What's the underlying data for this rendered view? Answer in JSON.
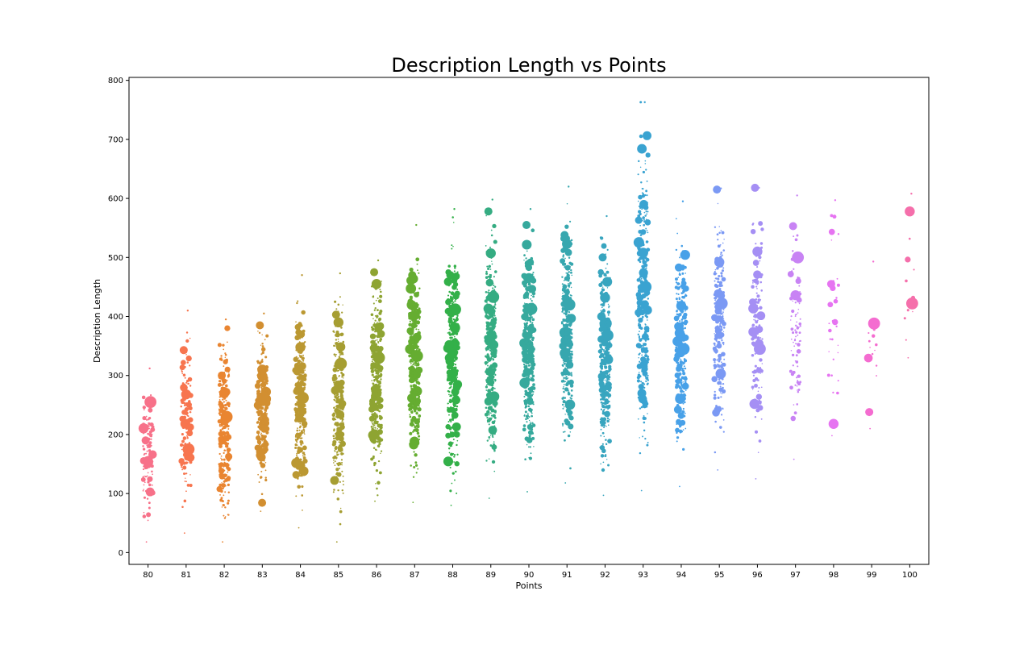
{
  "chart_data": {
    "type": "scatter",
    "title": "Description Length vs Points",
    "xlabel": "Points",
    "ylabel": "Description Length",
    "categories": [
      "80",
      "81",
      "82",
      "83",
      "84",
      "85",
      "86",
      "87",
      "88",
      "89",
      "90",
      "91",
      "92",
      "93",
      "94",
      "95",
      "96",
      "97",
      "98",
      "99",
      "100"
    ],
    "ylim": [
      -20,
      805
    ],
    "yticks": [
      0,
      100,
      200,
      300,
      400,
      500,
      600,
      700,
      800
    ],
    "grid": false,
    "legend": "none",
    "palette": [
      "#f77189",
      "#f7754f",
      "#e98531",
      "#d28f31",
      "#bb9832",
      "#a69e32",
      "#8ea432",
      "#65ad31",
      "#33b049",
      "#35ac82",
      "#36a99d",
      "#37a7af",
      "#38a5bf",
      "#3aa3d1",
      "#48a1e8",
      "#7b99f4",
      "#a58ff4",
      "#c883f4",
      "#e674f1",
      "#f46cd0",
      "#f56fab"
    ],
    "distribution": {
      "80": {
        "min": 18,
        "max": 312,
        "count": 110
      },
      "81": {
        "min": 33,
        "max": 410,
        "count": 160
      },
      "82": {
        "min": 18,
        "max": 395,
        "count": 260
      },
      "83": {
        "min": 70,
        "max": 405,
        "count": 300
      },
      "84": {
        "min": 42,
        "max": 470,
        "count": 310
      },
      "85": {
        "min": 18,
        "max": 473,
        "count": 330
      },
      "86": {
        "min": 87,
        "max": 495,
        "count": 360
      },
      "87": {
        "min": 85,
        "max": 555,
        "count": 380
      },
      "88": {
        "min": 80,
        "max": 582,
        "count": 380
      },
      "89": {
        "min": 92,
        "max": 598,
        "count": 380
      },
      "90": {
        "min": 103,
        "max": 582,
        "count": 400
      },
      "91": {
        "min": 118,
        "max": 620,
        "count": 380
      },
      "92": {
        "min": 97,
        "max": 570,
        "count": 360
      },
      "93": {
        "min": 105,
        "max": 763,
        "count": 340
      },
      "94": {
        "min": 112,
        "max": 595,
        "count": 290
      },
      "95": {
        "min": 140,
        "max": 617,
        "count": 230
      },
      "96": {
        "min": 125,
        "max": 618,
        "count": 150
      },
      "97": {
        "min": 158,
        "max": 605,
        "count": 90
      },
      "98": {
        "min": 198,
        "max": 597,
        "count": 30
      },
      "99": {
        "min": 210,
        "max": 493,
        "count": 12
      },
      "100": {
        "min": 330,
        "max": 608,
        "count": 10
      }
    },
    "highlight_points": [
      {
        "x": "80",
        "y": 190
      },
      {
        "x": "80",
        "y": 155
      },
      {
        "x": "80",
        "y": 255
      },
      {
        "x": "81",
        "y": 343
      },
      {
        "x": "81",
        "y": 268
      },
      {
        "x": "81",
        "y": 175
      },
      {
        "x": "82",
        "y": 300
      },
      {
        "x": "82",
        "y": 270
      },
      {
        "x": "82",
        "y": 230
      },
      {
        "x": "83",
        "y": 385
      },
      {
        "x": "83",
        "y": 310
      },
      {
        "x": "83",
        "y": 260
      },
      {
        "x": "84",
        "y": 310
      },
      {
        "x": "84",
        "y": 348
      },
      {
        "x": "84",
        "y": 262
      },
      {
        "x": "85",
        "y": 403
      },
      {
        "x": "85",
        "y": 390
      },
      {
        "x": "85",
        "y": 320
      },
      {
        "x": "86",
        "y": 475
      },
      {
        "x": "86",
        "y": 455
      },
      {
        "x": "86",
        "y": 330
      },
      {
        "x": "87",
        "y": 470
      },
      {
        "x": "87",
        "y": 402
      },
      {
        "x": "87",
        "y": 333
      },
      {
        "x": "88",
        "y": 470
      },
      {
        "x": "88",
        "y": 338
      },
      {
        "x": "88",
        "y": 412
      },
      {
        "x": "89",
        "y": 578
      },
      {
        "x": "89",
        "y": 507
      },
      {
        "x": "89",
        "y": 433
      },
      {
        "x": "90",
        "y": 555
      },
      {
        "x": "90",
        "y": 465
      },
      {
        "x": "90",
        "y": 413
      },
      {
        "x": "91",
        "y": 538
      },
      {
        "x": "91",
        "y": 523
      },
      {
        "x": "91",
        "y": 420
      },
      {
        "x": "92",
        "y": 500
      },
      {
        "x": "92",
        "y": 432
      },
      {
        "x": "92",
        "y": 368
      },
      {
        "x": "93",
        "y": 763
      },
      {
        "x": "93",
        "y": 508
      },
      {
        "x": "93",
        "y": 450
      },
      {
        "x": "94",
        "y": 483
      },
      {
        "x": "94",
        "y": 418
      },
      {
        "x": "94",
        "y": 345
      },
      {
        "x": "95",
        "y": 615
      },
      {
        "x": "95",
        "y": 492
      },
      {
        "x": "95",
        "y": 422
      },
      {
        "x": "96",
        "y": 618
      },
      {
        "x": "96",
        "y": 510
      },
      {
        "x": "96",
        "y": 345
      },
      {
        "x": "97",
        "y": 553
      },
      {
        "x": "97",
        "y": 436
      },
      {
        "x": "97",
        "y": 500
      },
      {
        "x": "98",
        "y": 455
      },
      {
        "x": "98",
        "y": 218
      },
      {
        "x": "99",
        "y": 388
      },
      {
        "x": "99",
        "y": 238
      },
      {
        "x": "100",
        "y": 578
      },
      {
        "x": "100",
        "y": 422
      }
    ]
  }
}
